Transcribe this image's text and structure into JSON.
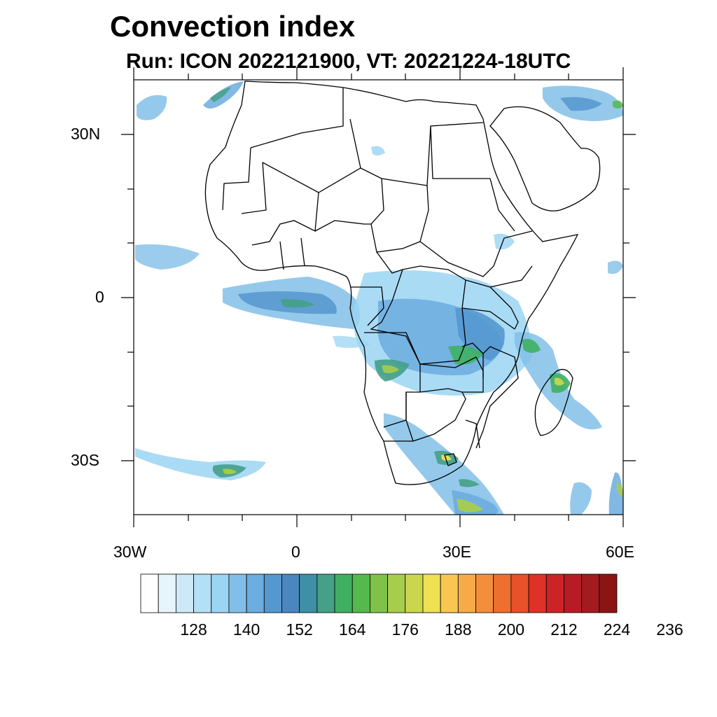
{
  "header": {
    "title": "Convection index",
    "subtitle": "Run: ICON 2022121900,  VT: 20221224-18UTC"
  },
  "axes": {
    "lat_labels": [
      "30N",
      "0",
      "30S"
    ],
    "lon_labels": [
      "30W",
      "0",
      "30E",
      "60E"
    ]
  },
  "map": {
    "projection": "cylindrical-equidistant",
    "lon_range": [
      -30,
      60
    ],
    "lat_range": [
      -40,
      40
    ],
    "field": "convection index",
    "features": [
      "coastlines",
      "country-borders",
      "filled-contours"
    ]
  },
  "colorbar": {
    "labels": [
      "128",
      "140",
      "152",
      "164",
      "176",
      "188",
      "200",
      "212",
      "224",
      "236"
    ],
    "colors": [
      "#ffffff",
      "#e6f4fb",
      "#cde9f7",
      "#b4e0f6",
      "#9ad5f3",
      "#82bfe8",
      "#6cacdf",
      "#5597cf",
      "#4a87c1",
      "#3f8fa6",
      "#44a087",
      "#3fb062",
      "#55b94c",
      "#7fc24a",
      "#a6cd4c",
      "#cad64e",
      "#eee053",
      "#f8c651",
      "#f6ab48",
      "#f38f3c",
      "#ee6f30",
      "#e85129",
      "#de3228",
      "#cc2327",
      "#b71c24",
      "#a31a1f",
      "#8b1515"
    ]
  }
}
